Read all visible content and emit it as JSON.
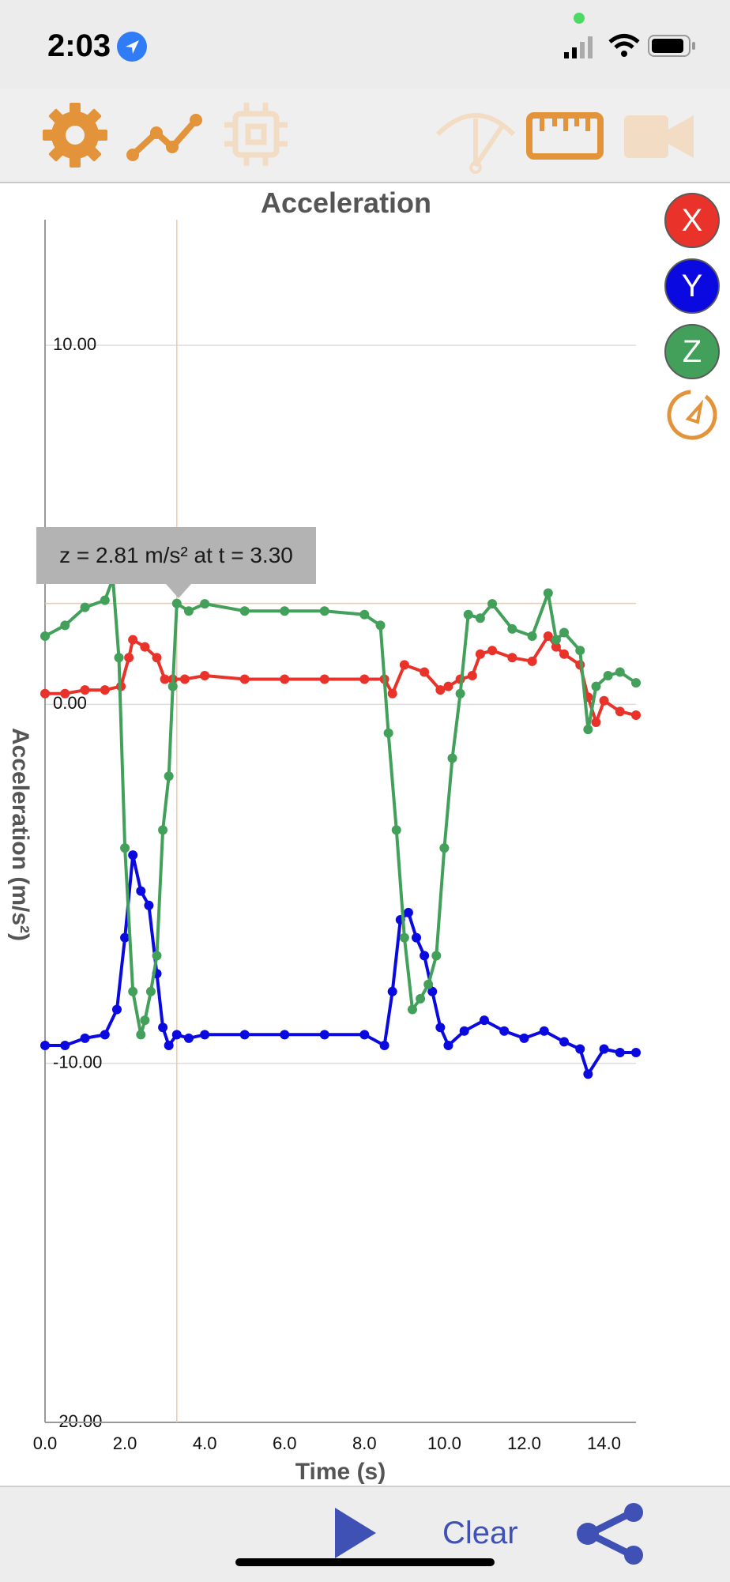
{
  "status_bar": {
    "time": "2:03"
  },
  "toolbar": {
    "icons": [
      "gear-icon",
      "graph-icon",
      "chip-icon",
      "gauge-icon",
      "ruler-icon",
      "video-icon"
    ]
  },
  "series_buttons": {
    "x": "X",
    "y": "Y",
    "z": "Z",
    "compass": "compass-icon"
  },
  "colors": {
    "x": "#e8322a",
    "y": "#0a0ae0",
    "z": "#42a05a",
    "accent": "#e39339",
    "cursor": "#f5c7a0"
  },
  "tooltip": {
    "text": "z = 2.81 m/s² at t = 3.30"
  },
  "bottom_bar": {
    "clear_label": "Clear",
    "play_icon": "play-icon",
    "share_icon": "share-icon"
  },
  "chart_data": {
    "type": "line",
    "title": "Acceleration",
    "xlabel": "Time (s)",
    "ylabel": "Acceleration (m/s²)",
    "xlim": [
      0,
      14.8
    ],
    "ylim": [
      -20,
      13.5
    ],
    "x_ticks": [
      "0.0",
      "2.0",
      "4.0",
      "6.0",
      "8.0",
      "10.0",
      "12.0",
      "14.0"
    ],
    "y_ticks": [
      "10.00",
      "0.00",
      "-10.00",
      "-20.00"
    ],
    "cursor": {
      "x": 3.3,
      "y": 2.81
    },
    "series": [
      {
        "name": "X",
        "x": [
          0,
          0.5,
          1.0,
          1.5,
          1.9,
          2.1,
          2.2,
          2.5,
          2.8,
          3.0,
          3.2,
          3.5,
          4.0,
          5.0,
          6.0,
          7.0,
          8.0,
          8.5,
          8.7,
          9.0,
          9.5,
          9.9,
          10.1,
          10.4,
          10.7,
          10.9,
          11.2,
          11.7,
          12.2,
          12.6,
          12.8,
          13.0,
          13.4,
          13.6,
          13.8,
          14.0,
          14.4,
          14.8
        ],
        "values": [
          0.3,
          0.3,
          0.4,
          0.4,
          0.5,
          1.3,
          1.8,
          1.6,
          1.3,
          0.7,
          0.7,
          0.7,
          0.8,
          0.7,
          0.7,
          0.7,
          0.7,
          0.7,
          0.3,
          1.1,
          0.9,
          0.4,
          0.5,
          0.7,
          0.8,
          1.4,
          1.5,
          1.3,
          1.2,
          1.9,
          1.6,
          1.4,
          1.1,
          0.2,
          -0.5,
          0.1,
          -0.2,
          -0.3
        ]
      },
      {
        "name": "Y",
        "x": [
          0,
          0.5,
          1.0,
          1.5,
          1.8,
          2.0,
          2.2,
          2.4,
          2.6,
          2.8,
          2.95,
          3.1,
          3.3,
          3.6,
          4.0,
          5.0,
          6.0,
          7.0,
          8.0,
          8.5,
          8.7,
          8.9,
          9.1,
          9.3,
          9.5,
          9.7,
          9.9,
          10.1,
          10.5,
          11.0,
          11.5,
          12.0,
          12.5,
          13.0,
          13.4,
          13.6,
          14.0,
          14.4,
          14.8
        ],
        "values": [
          -9.5,
          -9.5,
          -9.3,
          -9.2,
          -8.5,
          -6.5,
          -4.2,
          -5.2,
          -5.6,
          -7.5,
          -9.0,
          -9.5,
          -9.2,
          -9.3,
          -9.2,
          -9.2,
          -9.2,
          -9.2,
          -9.2,
          -9.5,
          -8.0,
          -6.0,
          -5.8,
          -6.5,
          -7.0,
          -8.0,
          -9.0,
          -9.5,
          -9.1,
          -8.8,
          -9.1,
          -9.3,
          -9.1,
          -9.4,
          -9.6,
          -10.3,
          -9.6,
          -9.7,
          -9.7
        ]
      },
      {
        "name": "Z",
        "x": [
          0,
          0.5,
          1.0,
          1.5,
          1.7,
          1.85,
          2.0,
          2.2,
          2.4,
          2.5,
          2.65,
          2.8,
          2.95,
          3.1,
          3.2,
          3.3,
          3.6,
          4.0,
          5.0,
          6.0,
          7.0,
          8.0,
          8.4,
          8.6,
          8.8,
          9.0,
          9.2,
          9.4,
          9.6,
          9.8,
          10.0,
          10.2,
          10.4,
          10.6,
          10.9,
          11.2,
          11.7,
          12.2,
          12.6,
          12.8,
          13.0,
          13.4,
          13.6,
          13.8,
          14.1,
          14.4,
          14.8
        ],
        "values": [
          1.9,
          2.2,
          2.7,
          2.9,
          3.5,
          1.3,
          -4.0,
          -8.0,
          -9.2,
          -8.8,
          -8.0,
          -7.0,
          -3.5,
          -2.0,
          0.5,
          2.81,
          2.6,
          2.8,
          2.6,
          2.6,
          2.6,
          2.5,
          2.2,
          -0.8,
          -3.5,
          -6.5,
          -8.5,
          -8.2,
          -7.8,
          -7.0,
          -4.0,
          -1.5,
          0.3,
          2.5,
          2.4,
          2.8,
          2.1,
          1.9,
          3.1,
          1.8,
          2.0,
          1.5,
          -0.7,
          0.5,
          0.8,
          0.9,
          0.6
        ]
      }
    ]
  }
}
